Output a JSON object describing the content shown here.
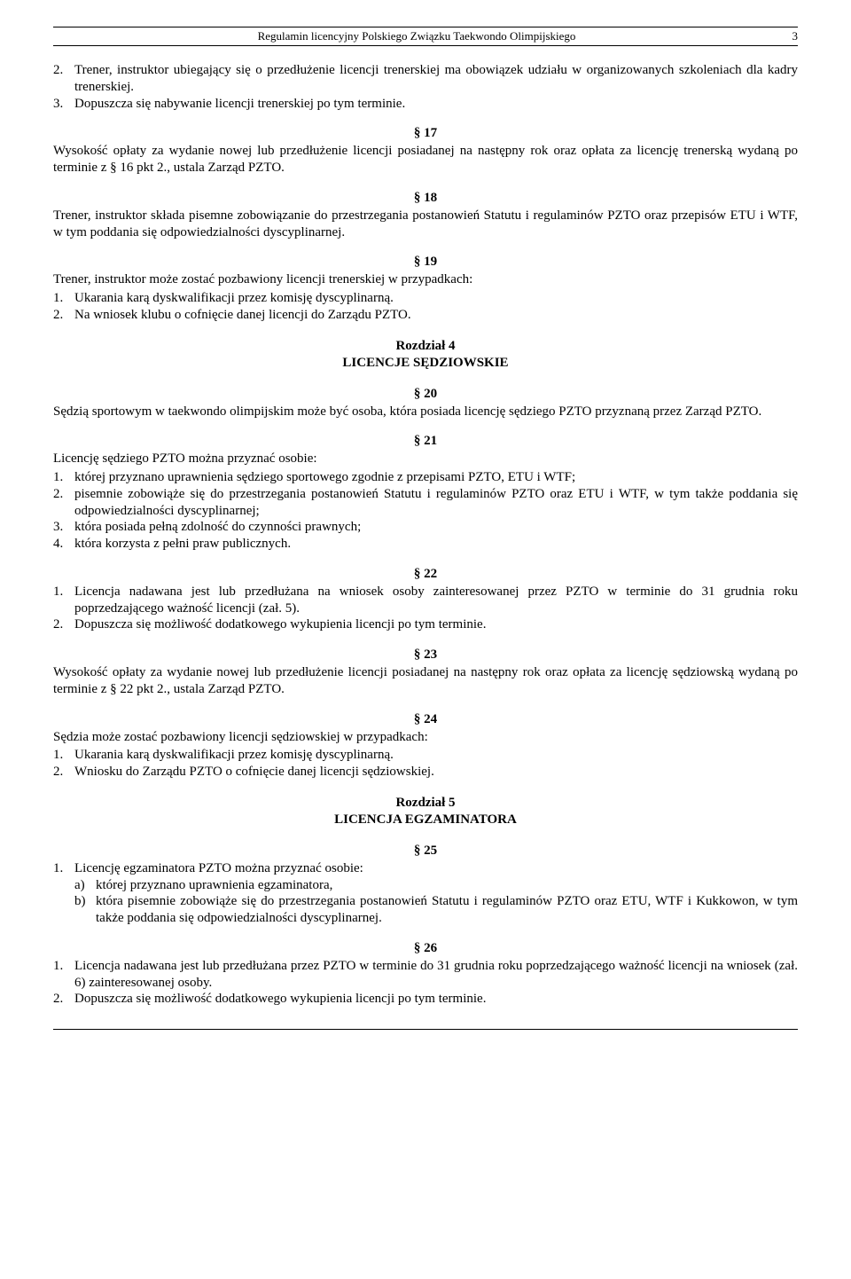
{
  "header": {
    "title": "Regulamin licencyjny Polskiego Związku Taekwondo Olimpijskiego",
    "page": "3"
  },
  "s2_items": [
    {
      "n": "2.",
      "t": "Trener, instruktor ubiegający się o przedłużenie licencji trenerskiej ma obowiązek udziału w organizowanych szkoleniach dla kadry trenerskiej."
    },
    {
      "n": "3.",
      "t": "Dopuszcza się nabywanie licencji trenerskiej po tym terminie."
    }
  ],
  "s17": {
    "num": "§ 17",
    "text": "Wysokość opłaty za wydanie nowej lub przedłużenie licencji posiadanej na następny rok oraz opłata za licencję trenerską wydaną po terminie z § 16 pkt 2., ustala Zarząd PZTO."
  },
  "s18": {
    "num": "§ 18",
    "text": "Trener, instruktor składa pisemne zobowiązanie do przestrzegania postanowień Statutu i regulaminów PZTO oraz przepisów ETU i WTF, w tym poddania się odpowiedzialności dyscyplinarnej."
  },
  "s19": {
    "num": "§ 19",
    "intro": "Trener, instruktor może zostać pozbawiony licencji trenerskiej w przypadkach:",
    "items": [
      {
        "n": "1.",
        "t": "Ukarania karą dyskwalifikacji przez komisję dyscyplinarną."
      },
      {
        "n": "2.",
        "t": "Na wniosek klubu o cofnięcie danej licencji do Zarządu PZTO."
      }
    ]
  },
  "ch4": {
    "line1": "Rozdział 4",
    "line2": "LICENCJE SĘDZIOWSKIE"
  },
  "s20": {
    "num": "§ 20",
    "text": "Sędzią sportowym w taekwondo olimpijskim może być osoba, która posiada licencję sędziego PZTO przyznaną przez Zarząd PZTO."
  },
  "s21": {
    "num": "§ 21",
    "intro": "Licencję sędziego PZTO można przyznać osobie:",
    "items": [
      {
        "n": "1.",
        "t": "której przyznano uprawnienia sędziego sportowego zgodnie z przepisami PZTO, ETU i WTF;"
      },
      {
        "n": "2.",
        "t": "pisemnie zobowiąże się do przestrzegania postanowień Statutu i regulaminów PZTO oraz ETU i WTF, w tym także poddania się odpowiedzialności dyscyplinarnej;"
      },
      {
        "n": "3.",
        "t": "która posiada pełną zdolność do czynności prawnych;"
      },
      {
        "n": "4.",
        "t": "która korzysta z pełni praw publicznych."
      }
    ]
  },
  "s22": {
    "num": "§ 22",
    "items": [
      {
        "n": "1.",
        "t": "Licencja nadawana jest lub przedłużana na wniosek osoby zainteresowanej przez PZTO w terminie do 31 grudnia roku poprzedzającego ważność licencji  (zał. 5)."
      },
      {
        "n": "2.",
        "t": "Dopuszcza się możliwość dodatkowego wykupienia licencji po tym terminie."
      }
    ]
  },
  "s23": {
    "num": "§ 23",
    "text": "Wysokość opłaty za wydanie nowej lub przedłużenie licencji posiadanej na następny rok oraz opłata za licencję sędziowską wydaną po terminie z § 22 pkt 2., ustala Zarząd PZTO."
  },
  "s24": {
    "num": "§ 24",
    "intro": "Sędzia może zostać pozbawiony licencji sędziowskiej w przypadkach:",
    "items": [
      {
        "n": "1.",
        "t": "Ukarania karą dyskwalifikacji przez komisję dyscyplinarną."
      },
      {
        "n": "2.",
        "t": "Wniosku do Zarządu PZTO o cofnięcie danej licencji sędziowskiej."
      }
    ]
  },
  "ch5": {
    "line1": "Rozdział 5",
    "line2": "LICENCJA EGZAMINATORA"
  },
  "s25": {
    "num": "§ 25",
    "items": [
      {
        "n": "1.",
        "t": "Licencję egzaminatora PZTO można przyznać osobie:"
      }
    ],
    "subitems": [
      {
        "n": "a)",
        "t": "której przyznano uprawnienia egzaminatora,"
      },
      {
        "n": "b)",
        "t": "która pisemnie zobowiąże się do przestrzegania postanowień Statutu i regulaminów PZTO oraz ETU, WTF i Kukkowon, w tym także poddania się odpowiedzialności dyscyplinarnej."
      }
    ]
  },
  "s26": {
    "num": "§ 26",
    "items": [
      {
        "n": "1.",
        "t": "Licencja nadawana jest lub przedłużana przez PZTO w terminie do 31 grudnia roku poprzedzającego ważność licencji na wniosek (zał. 6) zainteresowanej osoby."
      },
      {
        "n": "2.",
        "t": "Dopuszcza się możliwość dodatkowego wykupienia licencji po tym terminie."
      }
    ]
  }
}
